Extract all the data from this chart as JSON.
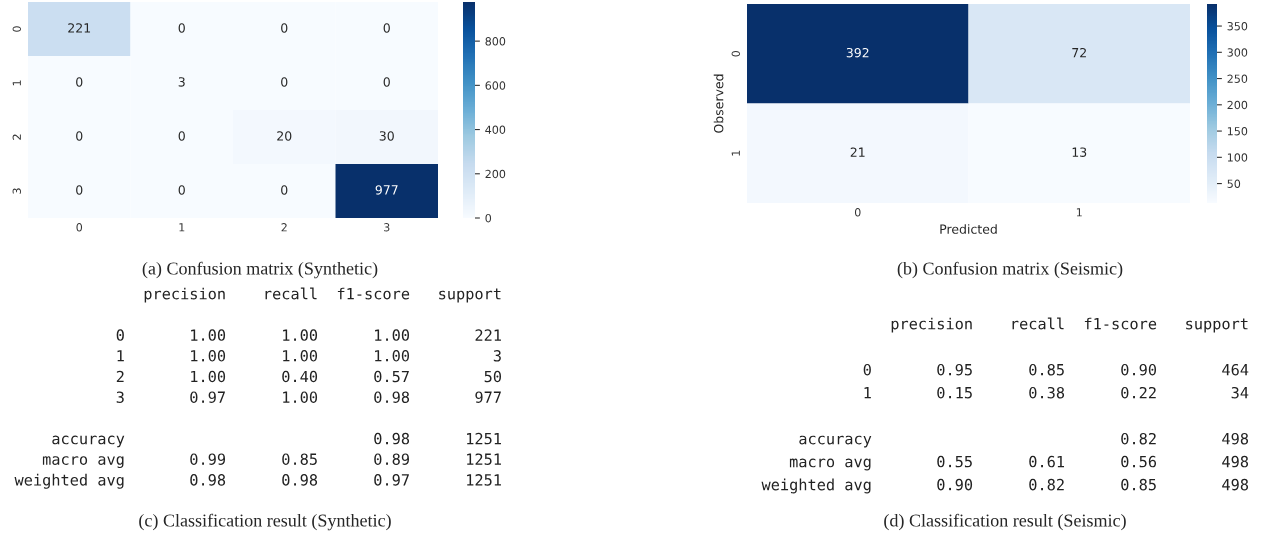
{
  "chart_data": [
    {
      "type": "heatmap",
      "title": "(a) Confusion matrix (Synthetic)",
      "categories": [
        "0",
        "1",
        "2",
        "3"
      ],
      "y_categories": [
        "0",
        "1",
        "2",
        "3"
      ],
      "cells": [
        [
          221,
          0,
          0,
          0
        ],
        [
          0,
          3,
          0,
          0
        ],
        [
          0,
          0,
          20,
          30
        ],
        [
          0,
          0,
          0,
          977
        ]
      ],
      "clim": [
        0,
        977
      ],
      "cticks": [
        0,
        200,
        400,
        600,
        800
      ],
      "data_labels": true
    },
    {
      "type": "heatmap",
      "title": "(b) Confusion matrix (Seismic)",
      "xlabel": "Predicted",
      "ylabel": "Observed",
      "categories": [
        "0",
        "1"
      ],
      "y_categories": [
        "0",
        "1"
      ],
      "cells": [
        [
          392,
          72
        ],
        [
          21,
          13
        ]
      ],
      "clim": [
        13,
        392
      ],
      "cticks": [
        50,
        100,
        150,
        200,
        250,
        300,
        350
      ],
      "data_labels": true
    },
    {
      "type": "other",
      "title": "(c) Classification result (Synthetic)",
      "annotations": [
        "precision    recall  f1-score   support",
        "0       1.00      1.00      1.00       221",
        "1       1.00      1.00      1.00         3",
        "2       1.00      0.40      0.57        50",
        "3       0.97      1.00      0.98       977",
        "accuracy                           0.98      1251",
        "macro avg       0.99      0.85      0.89      1251",
        "weighted avg       0.98      0.98      0.97      1251"
      ]
    },
    {
      "type": "other",
      "title": "(d) Classification result (Seismic)",
      "annotations": [
        "precision    recall  f1-score   support",
        "0       0.95      0.85      0.90       464",
        "1       0.15      0.38      0.22        34",
        "accuracy                           0.82       498",
        "macro avg       0.55      0.61      0.56       498",
        "weighted avg       0.90      0.82      0.85       498"
      ]
    }
  ]
}
